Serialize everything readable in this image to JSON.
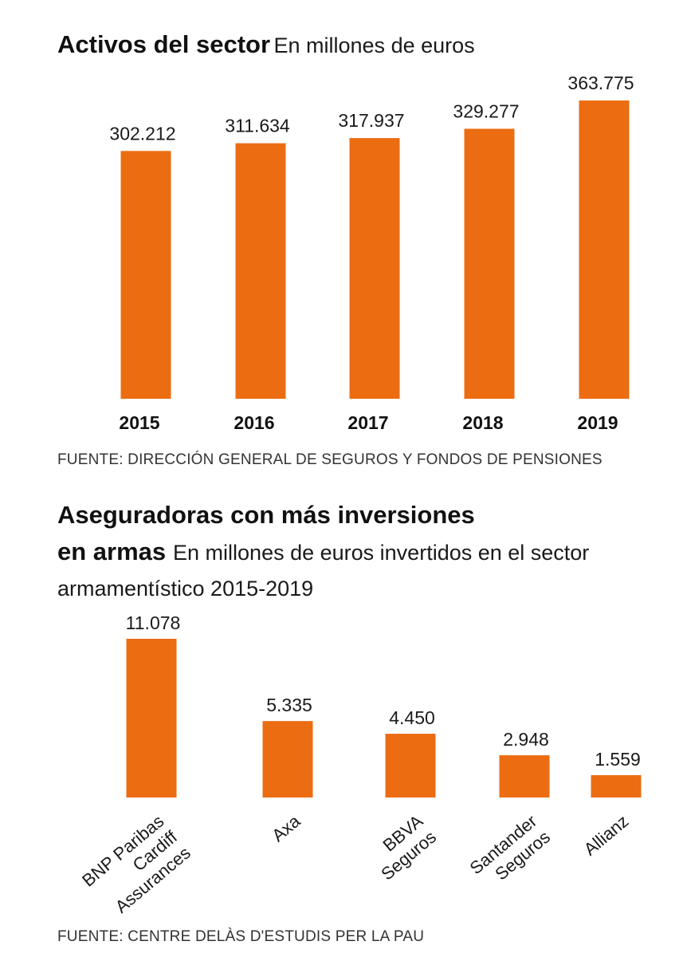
{
  "chart_data": [
    {
      "type": "bar",
      "title": "Activos del sector",
      "subtitle": "En millones de euros",
      "categories": [
        "2015",
        "2016",
        "2017",
        "2018",
        "2019"
      ],
      "values": [
        302212,
        311634,
        317937,
        329277,
        363775
      ],
      "value_labels": [
        "302.212",
        "311.634",
        "317.937",
        "329.277",
        "363.775"
      ],
      "color": "#ec6c12",
      "ylim": [
        0,
        363775
      ],
      "grid": false,
      "source": "FUENTE: DIRECCIÓN GENERAL DE SEGUROS Y FONDOS DE PENSIONES"
    },
    {
      "type": "bar",
      "title_line1": "Aseguradoras con más inversiones",
      "title_line2": "en armas",
      "subtitle": "En millones de euros invertidos en el sector armamentístico 2015-2019",
      "categories": [
        [
          "BNP Paribas",
          "Cardiff",
          "Assurances"
        ],
        [
          "Axa"
        ],
        [
          "BBVA",
          "Seguros"
        ],
        [
          "Santander",
          "Seguros"
        ],
        [
          "Allianz"
        ]
      ],
      "values": [
        11078,
        5335,
        4450,
        2948,
        1559
      ],
      "value_labels": [
        "11.078",
        "5.335",
        "4.450",
        "2.948",
        "1.559"
      ],
      "color": "#ec6c12",
      "ylim": [
        0,
        11078
      ],
      "grid": false,
      "source": "FUENTE: CENTRE DELÀS D'ESTUDIS PER LA PAU"
    }
  ]
}
